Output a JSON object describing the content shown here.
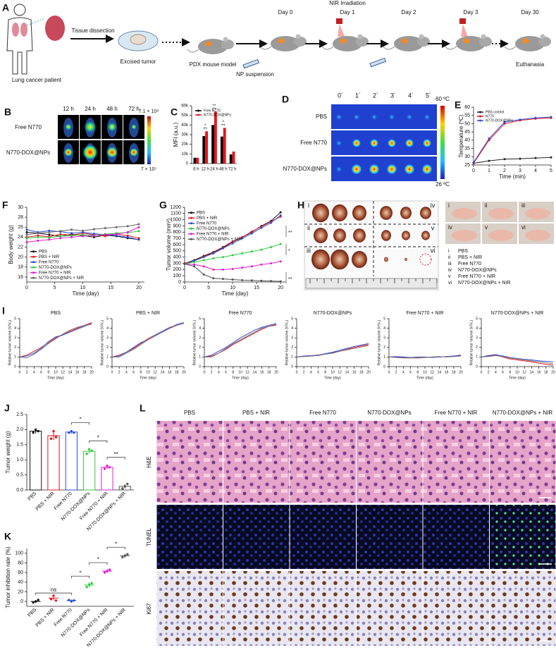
{
  "panel_labels": [
    "A",
    "B",
    "C",
    "D",
    "E",
    "F",
    "G",
    "H",
    "I",
    "J",
    "K",
    "L"
  ],
  "schematic": {
    "patient": "Lung cancer patient",
    "dissection": "Tissue dissection",
    "excised": "Excised tumor",
    "model": "PDX mouse model",
    "injection": "NP suspension",
    "irradiation": "NIR Irradiation",
    "days": [
      "Day 0",
      "Day 1",
      "Day 2",
      "Day 3",
      "Day 30"
    ],
    "endpoint": "Euthanasia"
  },
  "imaging_b": {
    "times": [
      "12 h",
      "24 h",
      "48 h",
      "72 h"
    ],
    "groups": [
      "Free N770",
      "N770-DOX@NPs"
    ],
    "scale_max": "7.1 × 10⁸",
    "scale_min": "7 × 10⁵"
  },
  "imaging_d": {
    "times": [
      "0´",
      "1´",
      "2´",
      "3´",
      "4´",
      "5´"
    ],
    "groups": [
      "PBS",
      "Free N770",
      "N770-DOX@NPs"
    ],
    "scale_max": "60 ºC",
    "scale_min": "26 ºC"
  },
  "photos_h": {
    "groups": [
      {
        "numeral": "i",
        "name": "PBS"
      },
      {
        "numeral": "ii",
        "name": "PBS + NIR"
      },
      {
        "numeral": "iii",
        "name": "Free N770"
      },
      {
        "numeral": "iv",
        "name": "N770-DOX@NPs"
      },
      {
        "numeral": "v",
        "name": "Free N770 + NIR"
      },
      {
        "numeral": "vi",
        "name": "N770-DOX@NPs  + NIR"
      }
    ]
  },
  "histology_l": {
    "groups": [
      "PBS",
      "PBS + NIR",
      "Free N770",
      "N770-DOX@NPs",
      "Free N770 + NIR",
      "N770-DOX@NPs + NIR"
    ],
    "stains": [
      "H&E",
      "TUNEL",
      "Ki67"
    ]
  },
  "chart_data": [
    {
      "type": "bar",
      "ylabel": "MFI (a.u.)",
      "categories": [
        "6 h",
        "12 h",
        "24 h",
        "48 h",
        "72 h"
      ],
      "series": [
        {
          "name": "Free N770",
          "color": "#000000",
          "values": [
            6000,
            28500,
            40000,
            28000,
            9500
          ]
        },
        {
          "name": "N770-DOX@NPs",
          "color": "#e8141b",
          "values": [
            6000,
            33500,
            54000,
            37000,
            12500
          ]
        }
      ],
      "ylim": [
        0,
        60000
      ],
      "yticks": [
        0,
        {
          "value": 10000,
          "label": "10k"
        },
        {
          "value": 20000,
          "label": "20k"
        },
        {
          "value": 30000,
          "label": "30k"
        },
        {
          "value": 40000,
          "label": "40k"
        },
        {
          "value": 50000,
          "label": "50k"
        },
        {
          "value": 60000,
          "label": "60k"
        }
      ],
      "significance": [
        null,
        "*",
        "**",
        "*",
        null
      ],
      "legend": "upper-left"
    },
    {
      "type": "line",
      "xlabel": "Time (min)",
      "ylabel": "Temperature (ºC)",
      "x": [
        0,
        1,
        2,
        3,
        4,
        5
      ],
      "xlim": [
        0,
        5
      ],
      "xticks": [
        0,
        1,
        2,
        3,
        4,
        5
      ],
      "ylim": [
        25,
        60
      ],
      "yticks": [
        25,
        30,
        35,
        40,
        45,
        50,
        55,
        60
      ],
      "legend": "upper-left",
      "series": [
        {
          "name": "PBS control",
          "color": "#222222",
          "values": [
            26,
            27.5,
            28.5,
            28.8,
            29.2,
            29.6
          ]
        },
        {
          "name": "N770",
          "color": "#e8141b",
          "values": [
            26,
            40,
            50,
            52,
            53,
            53.5
          ]
        },
        {
          "name": "N770-DOX@NPs",
          "color": "#2b4bd8",
          "values": [
            26.5,
            41,
            51,
            52.5,
            53.5,
            54
          ]
        }
      ]
    },
    {
      "type": "line",
      "xlabel": "Time (day)",
      "ylabel": "Body weight (g)",
      "x": [
        0,
        2,
        4,
        6,
        8,
        10,
        12,
        14,
        16,
        18,
        20
      ],
      "xlim": [
        0,
        21
      ],
      "xticks": [
        0,
        5,
        10,
        15,
        20
      ],
      "ylim": [
        15,
        30
      ],
      "yticks": [
        16,
        18,
        20,
        22,
        24,
        26,
        28,
        30
      ],
      "legend": "lower-left",
      "series": [
        {
          "name": "PBS",
          "color": "#111111",
          "values": [
            25,
            24.8,
            24.5,
            24.2,
            24.6,
            24.3,
            24,
            24.4,
            24.2,
            23.8,
            23.5
          ]
        },
        {
          "name": "PBS + NIR",
          "color": "#e8141b",
          "values": [
            24,
            24.3,
            24.1,
            24.6,
            24.4,
            24.8,
            24.5,
            24.2,
            24.6,
            24.3,
            23.8
          ]
        },
        {
          "name": "Free N770",
          "color": "#2b4bd8",
          "values": [
            25.5,
            25,
            25.3,
            25.1,
            24.8,
            25,
            24.7,
            24.5,
            24.3,
            24,
            23.5
          ]
        },
        {
          "name": "N770-DOX@NPs",
          "color": "#2ecc40",
          "values": [
            23.8,
            24,
            23.9,
            24.2,
            24.3,
            24.5,
            24.4,
            24.6,
            24.8,
            24.9,
            25.2
          ]
        },
        {
          "name": "Free N770 + NIR",
          "color": "#e020d0",
          "values": [
            23,
            23.3,
            23.5,
            23.8,
            24,
            24.2,
            24.3,
            24.5,
            24.6,
            25,
            26
          ]
        },
        {
          "name": "N770-DOX@NPs + NIR",
          "color": "#666666",
          "values": [
            24.5,
            24.8,
            25,
            25.2,
            25.5,
            25.3,
            25.6,
            25.8,
            26,
            26.2,
            26.6
          ]
        }
      ]
    },
    {
      "type": "line",
      "xlabel": "Time (day)",
      "ylabel": "Tumor volume (mm³)",
      "x": [
        0,
        2,
        4,
        6,
        8,
        10,
        12,
        14,
        16,
        18,
        20
      ],
      "xlim": [
        0,
        21
      ],
      "xticks": [
        0,
        5,
        10,
        15,
        20
      ],
      "ylim": [
        0,
        1200
      ],
      "yticks": [
        0,
        100,
        200,
        300,
        400,
        500,
        600,
        700,
        800,
        900,
        1000,
        1100,
        1200
      ],
      "legend": "upper-left",
      "significance": [
        "**",
        "*",
        "**"
      ],
      "series": [
        {
          "name": "PBS",
          "color": "#111111",
          "values": [
            300,
            350,
            420,
            480,
            560,
            650,
            720,
            800,
            900,
            980,
            1120
          ]
        },
        {
          "name": "PBS + NIR",
          "color": "#e8141b",
          "values": [
            300,
            340,
            410,
            470,
            550,
            640,
            720,
            810,
            890,
            970,
            1050
          ]
        },
        {
          "name": "Free N770",
          "color": "#2b4bd8",
          "values": [
            290,
            340,
            400,
            460,
            540,
            620,
            700,
            780,
            870,
            950,
            1070
          ]
        },
        {
          "name": "N770-DOX@NPs",
          "color": "#2ecc40",
          "values": [
            290,
            320,
            350,
            380,
            400,
            430,
            460,
            490,
            520,
            560,
            610
          ]
        },
        {
          "name": "Free N770 + NIR",
          "color": "#e020d0",
          "values": [
            290,
            280,
            250,
            200,
            200,
            210,
            230,
            250,
            280,
            300,
            330
          ]
        },
        {
          "name": "N770-DOX@NPs + NIR",
          "color": "#555555",
          "values": [
            290,
            250,
            120,
            60,
            50,
            40,
            30,
            25,
            20,
            15,
            10
          ]
        }
      ]
    },
    {
      "type": "line",
      "xlabel": "Time (day)",
      "ylabel": "Relative tumor volume (V/V₀)",
      "x": [
        0,
        2,
        4,
        6,
        8,
        10,
        12,
        14,
        16,
        18,
        20
      ],
      "xlim": [
        0,
        20
      ],
      "xticks": [
        0,
        2,
        4,
        6,
        8,
        10,
        12,
        14,
        16,
        18,
        20
      ],
      "ylim": [
        0,
        5
      ],
      "yticks": [
        0,
        1,
        2,
        3,
        4,
        5
      ],
      "panels": [
        {
          "title": "PBS",
          "series": [
            {
              "color": "#e8141b",
              "values": [
                1,
                1.2,
                1.6,
                2.0,
                2.5,
                3.0,
                3.3,
                3.7,
                4.0,
                4.3,
                4.6
              ]
            },
            {
              "color": "#2b4bd8",
              "values": [
                1,
                1.1,
                1.4,
                1.9,
                2.6,
                3.1,
                3.3,
                3.6,
                3.9,
                4.2,
                4.5
              ]
            },
            {
              "color": "#777777",
              "values": [
                1,
                0.9,
                1.3,
                1.8,
                2.4,
                2.9,
                3.4,
                3.8,
                4.1,
                4.3,
                4.4
              ]
            }
          ]
        },
        {
          "title": "PBS + NIR",
          "series": [
            {
              "color": "#e8141b",
              "values": [
                1,
                1.2,
                1.5,
                1.9,
                2.4,
                2.9,
                3.3,
                3.7,
                4.0,
                4.3,
                4.5
              ]
            },
            {
              "color": "#2b4bd8",
              "values": [
                1,
                1.1,
                1.5,
                2.0,
                2.5,
                2.8,
                3.2,
                3.6,
                4.0,
                4.4,
                4.6
              ]
            },
            {
              "color": "#777777",
              "values": [
                1,
                1.0,
                1.4,
                1.8,
                2.3,
                2.8,
                3.3,
                3.7,
                4.1,
                4.3,
                4.5
              ]
            }
          ]
        },
        {
          "title": "Free N770",
          "series": [
            {
              "color": "#e8141b",
              "values": [
                1,
                1.1,
                1.4,
                1.8,
                2.3,
                2.7,
                3.1,
                3.5,
                3.9,
                4.2,
                4.4
              ]
            },
            {
              "color": "#2b4bd8",
              "values": [
                1,
                1.2,
                1.6,
                2.0,
                2.5,
                3.0,
                3.4,
                3.8,
                4.1,
                4.3,
                4.5
              ]
            },
            {
              "color": "#777777",
              "values": [
                1,
                1.0,
                1.4,
                1.9,
                2.4,
                2.8,
                3.2,
                3.6,
                4.0,
                4.2,
                4.3
              ]
            }
          ]
        },
        {
          "title": "N770-DOX@NPs",
          "series": [
            {
              "color": "#e8141b",
              "values": [
                1,
                1.05,
                1.1,
                1.2,
                1.3,
                1.45,
                1.6,
                1.8,
                2.0,
                2.15,
                2.3
              ]
            },
            {
              "color": "#2b4bd8",
              "values": [
                1,
                1.1,
                1.15,
                1.2,
                1.35,
                1.5,
                1.7,
                1.9,
                2.1,
                2.25,
                2.4
              ]
            },
            {
              "color": "#777777",
              "values": [
                1,
                1.05,
                1.1,
                1.15,
                1.3,
                1.4,
                1.6,
                1.75,
                1.9,
                2.05,
                2.2
              ]
            }
          ]
        },
        {
          "title": "Free N770 + NIR",
          "series": [
            {
              "color": "#e8141b",
              "values": [
                1,
                1.0,
                0.95,
                0.9,
                0.9,
                0.95,
                1.0,
                1.0,
                1.05,
                1.1,
                1.15
              ]
            },
            {
              "color": "#2b4bd8",
              "values": [
                1,
                1.05,
                1.0,
                0.95,
                1.0,
                1.0,
                0.95,
                1.0,
                1.05,
                1.1,
                1.2
              ]
            },
            {
              "color": "#777777",
              "values": [
                1,
                0.95,
                0.9,
                0.9,
                0.95,
                0.95,
                1.0,
                1.05,
                1.0,
                1.05,
                1.1
              ]
            }
          ]
        },
        {
          "title": "N770-DOX@NPs + NIR",
          "series": [
            {
              "color": "#e8141b",
              "values": [
                1,
                1.1,
                1.2,
                1.0,
                0.8,
                0.7,
                0.6,
                0.5,
                0.35,
                0.25,
                0.15
              ]
            },
            {
              "color": "#2b4bd8",
              "values": [
                1,
                1.15,
                1.25,
                1.1,
                0.95,
                0.85,
                0.75,
                0.7,
                0.6,
                0.55,
                0.5
              ]
            },
            {
              "color": "#777777",
              "values": [
                1,
                1.05,
                1.15,
                1.05,
                0.9,
                0.8,
                0.7,
                0.6,
                0.5,
                0.4,
                0.3
              ]
            }
          ]
        }
      ]
    },
    {
      "type": "bar",
      "ylabel": "Tumor weight (g)",
      "categories": [
        "PBS",
        "PBS + NIR",
        "Free N770",
        "N770-DOX@NPs",
        "Free N770 + NIR",
        "N770-DOX@NPs + NIR"
      ],
      "colors": [
        "#111111",
        "#e8141b",
        "#2b4bd8",
        "#2ecc40",
        "#e020d0",
        "#555555"
      ],
      "values": [
        1.95,
        1.8,
        1.92,
        1.28,
        0.75,
        0.12
      ],
      "errors": [
        0.08,
        0.15,
        0.05,
        0.08,
        0.06,
        0.07
      ],
      "points": [
        [
          1.9,
          2.0,
          1.95
        ],
        [
          1.7,
          1.95,
          1.75
        ],
        [
          1.9,
          1.95,
          1.9
        ],
        [
          1.2,
          1.35,
          1.3
        ],
        [
          0.7,
          0.8,
          0.75
        ],
        [
          0.05,
          0.12,
          0.2
        ]
      ],
      "ylim": [
        0,
        2.5
      ],
      "yticks": [
        {
          "value": 0,
          "label": "0.0"
        },
        0.5,
        {
          "value": 1,
          "label": "1.0"
        },
        1.5,
        {
          "value": 2,
          "label": "2.0"
        },
        2.5
      ],
      "significance": [
        "*",
        "*",
        "**"
      ]
    },
    {
      "type": "dot",
      "ylabel": "Tumor inhibition rate (%)",
      "categories": [
        "PBS",
        "PBS + NIR",
        "Free N770",
        "N770-DOX@NPs",
        "Free N770 + NIR",
        "N770-DOX@NPs + NIR"
      ],
      "colors": [
        "#111111",
        "#e8141b",
        "#2b4bd8",
        "#2ecc40",
        "#e020d0",
        "#555555"
      ],
      "values": [
        0,
        7,
        2,
        34,
        63,
        95
      ],
      "errors": [
        3,
        5,
        2,
        5,
        4,
        4
      ],
      "points": [
        [
          -2,
          0,
          3
        ],
        [
          5,
          12,
          2
        ],
        [
          3,
          0,
          2
        ],
        [
          30,
          35,
          38
        ],
        [
          60,
          63,
          66
        ],
        [
          92,
          95,
          98
        ]
      ],
      "ylim": [
        -10,
        110
      ],
      "yticks": [
        0,
        20,
        40,
        60,
        80,
        100
      ],
      "significance": [
        "ns",
        "*",
        "*",
        "*"
      ]
    }
  ]
}
